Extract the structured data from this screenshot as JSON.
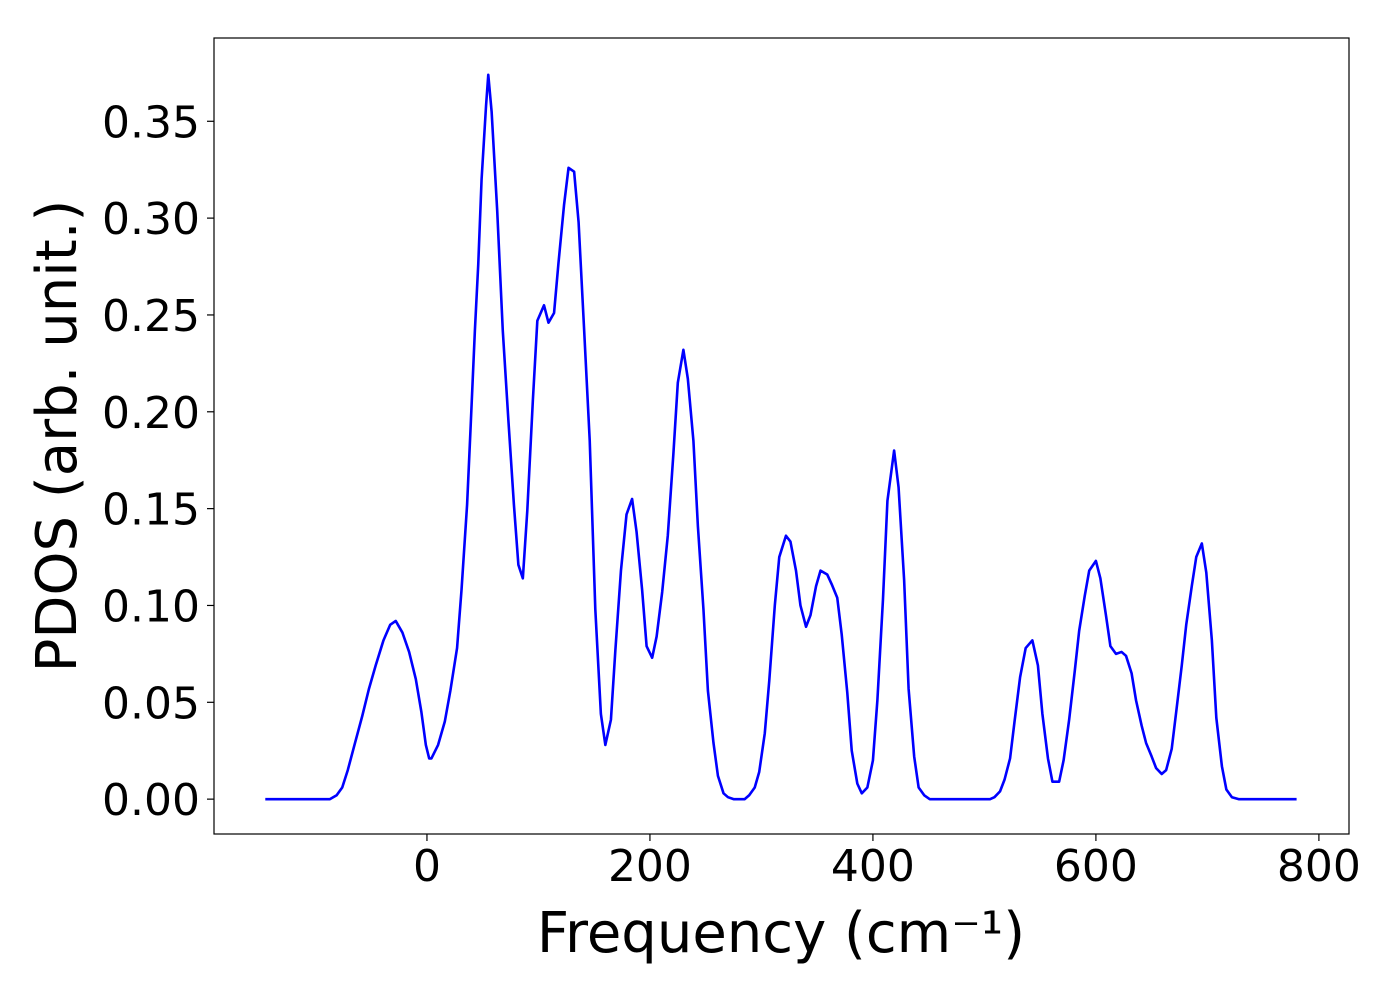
{
  "chart_data": {
    "type": "line",
    "x_label": "Frequency (cm⁻¹)",
    "y_label": "PDOS (arb. unit.)",
    "x": [
      -145,
      -87,
      -81,
      -76,
      -71,
      -65,
      -58,
      -52,
      -46,
      -39,
      -33,
      -28,
      -22,
      -16,
      -10,
      -5,
      -1,
      2,
      4,
      10,
      16,
      21,
      27,
      31,
      36,
      39,
      43,
      46,
      49,
      53,
      55,
      58,
      63,
      68,
      73,
      78,
      82,
      86,
      90,
      95,
      99,
      105,
      109,
      114,
      118,
      123,
      127,
      132,
      136,
      141,
      146,
      151,
      156,
      160,
      165,
      169,
      174,
      179,
      184,
      188,
      193,
      197,
      202,
      206,
      211,
      216,
      221,
      225,
      230,
      234,
      239,
      243,
      248,
      252,
      257,
      261,
      266,
      270,
      275,
      285,
      289,
      294,
      298,
      303,
      307,
      312,
      316,
      322,
      326,
      331,
      335,
      340,
      344,
      349,
      353,
      359,
      363,
      368,
      372,
      377,
      381,
      386,
      390,
      395,
      400,
      404,
      409,
      413,
      419,
      423,
      428,
      432,
      437,
      441,
      446,
      451,
      505,
      509,
      514,
      518,
      523,
      527,
      532,
      537,
      543,
      548,
      552,
      557,
      561,
      567,
      571,
      576,
      581,
      585,
      590,
      594,
      600,
      604,
      609,
      613,
      618,
      623,
      627,
      632,
      636,
      641,
      645,
      650,
      654,
      659,
      663,
      668,
      672,
      677,
      681,
      686,
      690,
      695,
      699,
      704,
      708,
      713,
      717,
      722,
      728,
      780
    ],
    "series": [
      {
        "color": "#0000ff",
        "values": [
          0,
          0,
          0.002,
          0.006,
          0.015,
          0.028,
          0.043,
          0.057,
          0.069,
          0.082,
          0.09,
          0.092,
          0.086,
          0.076,
          0.062,
          0.045,
          0.028,
          0.021,
          0.021,
          0.028,
          0.04,
          0.056,
          0.078,
          0.108,
          0.152,
          0.19,
          0.242,
          0.276,
          0.32,
          0.358,
          0.374,
          0.355,
          0.304,
          0.242,
          0.196,
          0.152,
          0.121,
          0.114,
          0.149,
          0.206,
          0.247,
          0.255,
          0.246,
          0.251,
          0.277,
          0.307,
          0.326,
          0.324,
          0.298,
          0.242,
          0.185,
          0.098,
          0.044,
          0.028,
          0.041,
          0.077,
          0.118,
          0.147,
          0.155,
          0.138,
          0.108,
          0.079,
          0.073,
          0.084,
          0.107,
          0.136,
          0.178,
          0.215,
          0.232,
          0.217,
          0.185,
          0.141,
          0.098,
          0.056,
          0.029,
          0.012,
          0.003,
          0.001,
          0,
          0,
          0.002,
          0.006,
          0.014,
          0.034,
          0.061,
          0.1,
          0.125,
          0.136,
          0.133,
          0.118,
          0.1,
          0.089,
          0.095,
          0.11,
          0.118,
          0.116,
          0.111,
          0.104,
          0.085,
          0.055,
          0.025,
          0.008,
          0.003,
          0.006,
          0.02,
          0.051,
          0.103,
          0.154,
          0.18,
          0.161,
          0.113,
          0.057,
          0.022,
          0.006,
          0.002,
          0,
          0,
          0.001,
          0.004,
          0.01,
          0.021,
          0.04,
          0.063,
          0.078,
          0.082,
          0.069,
          0.044,
          0.021,
          0.009,
          0.009,
          0.02,
          0.041,
          0.066,
          0.087,
          0.105,
          0.118,
          0.123,
          0.114,
          0.095,
          0.079,
          0.075,
          0.076,
          0.074,
          0.065,
          0.051,
          0.038,
          0.029,
          0.022,
          0.016,
          0.013,
          0.015,
          0.026,
          0.045,
          0.069,
          0.09,
          0.11,
          0.125,
          0.132,
          0.117,
          0.082,
          0.042,
          0.017,
          0.005,
          0.001,
          0,
          0
        ]
      }
    ],
    "xlim": [
      -191,
      827
    ],
    "ylim": [
      -0.018,
      0.393
    ],
    "xticks": [
      0,
      200,
      400,
      600,
      800
    ],
    "yticks": [
      {
        "value": 0,
        "label": "0.00"
      },
      {
        "value": 0.05,
        "label": "0.05"
      },
      {
        "value": 0.1,
        "label": "0.10"
      },
      {
        "value": 0.15,
        "label": "0.15"
      },
      {
        "value": 0.2,
        "label": "0.20"
      },
      {
        "value": 0.25,
        "label": "0.25"
      },
      {
        "value": 0.3,
        "label": "0.30"
      },
      {
        "value": 0.35,
        "label": "0.35"
      }
    ],
    "grid": false
  }
}
